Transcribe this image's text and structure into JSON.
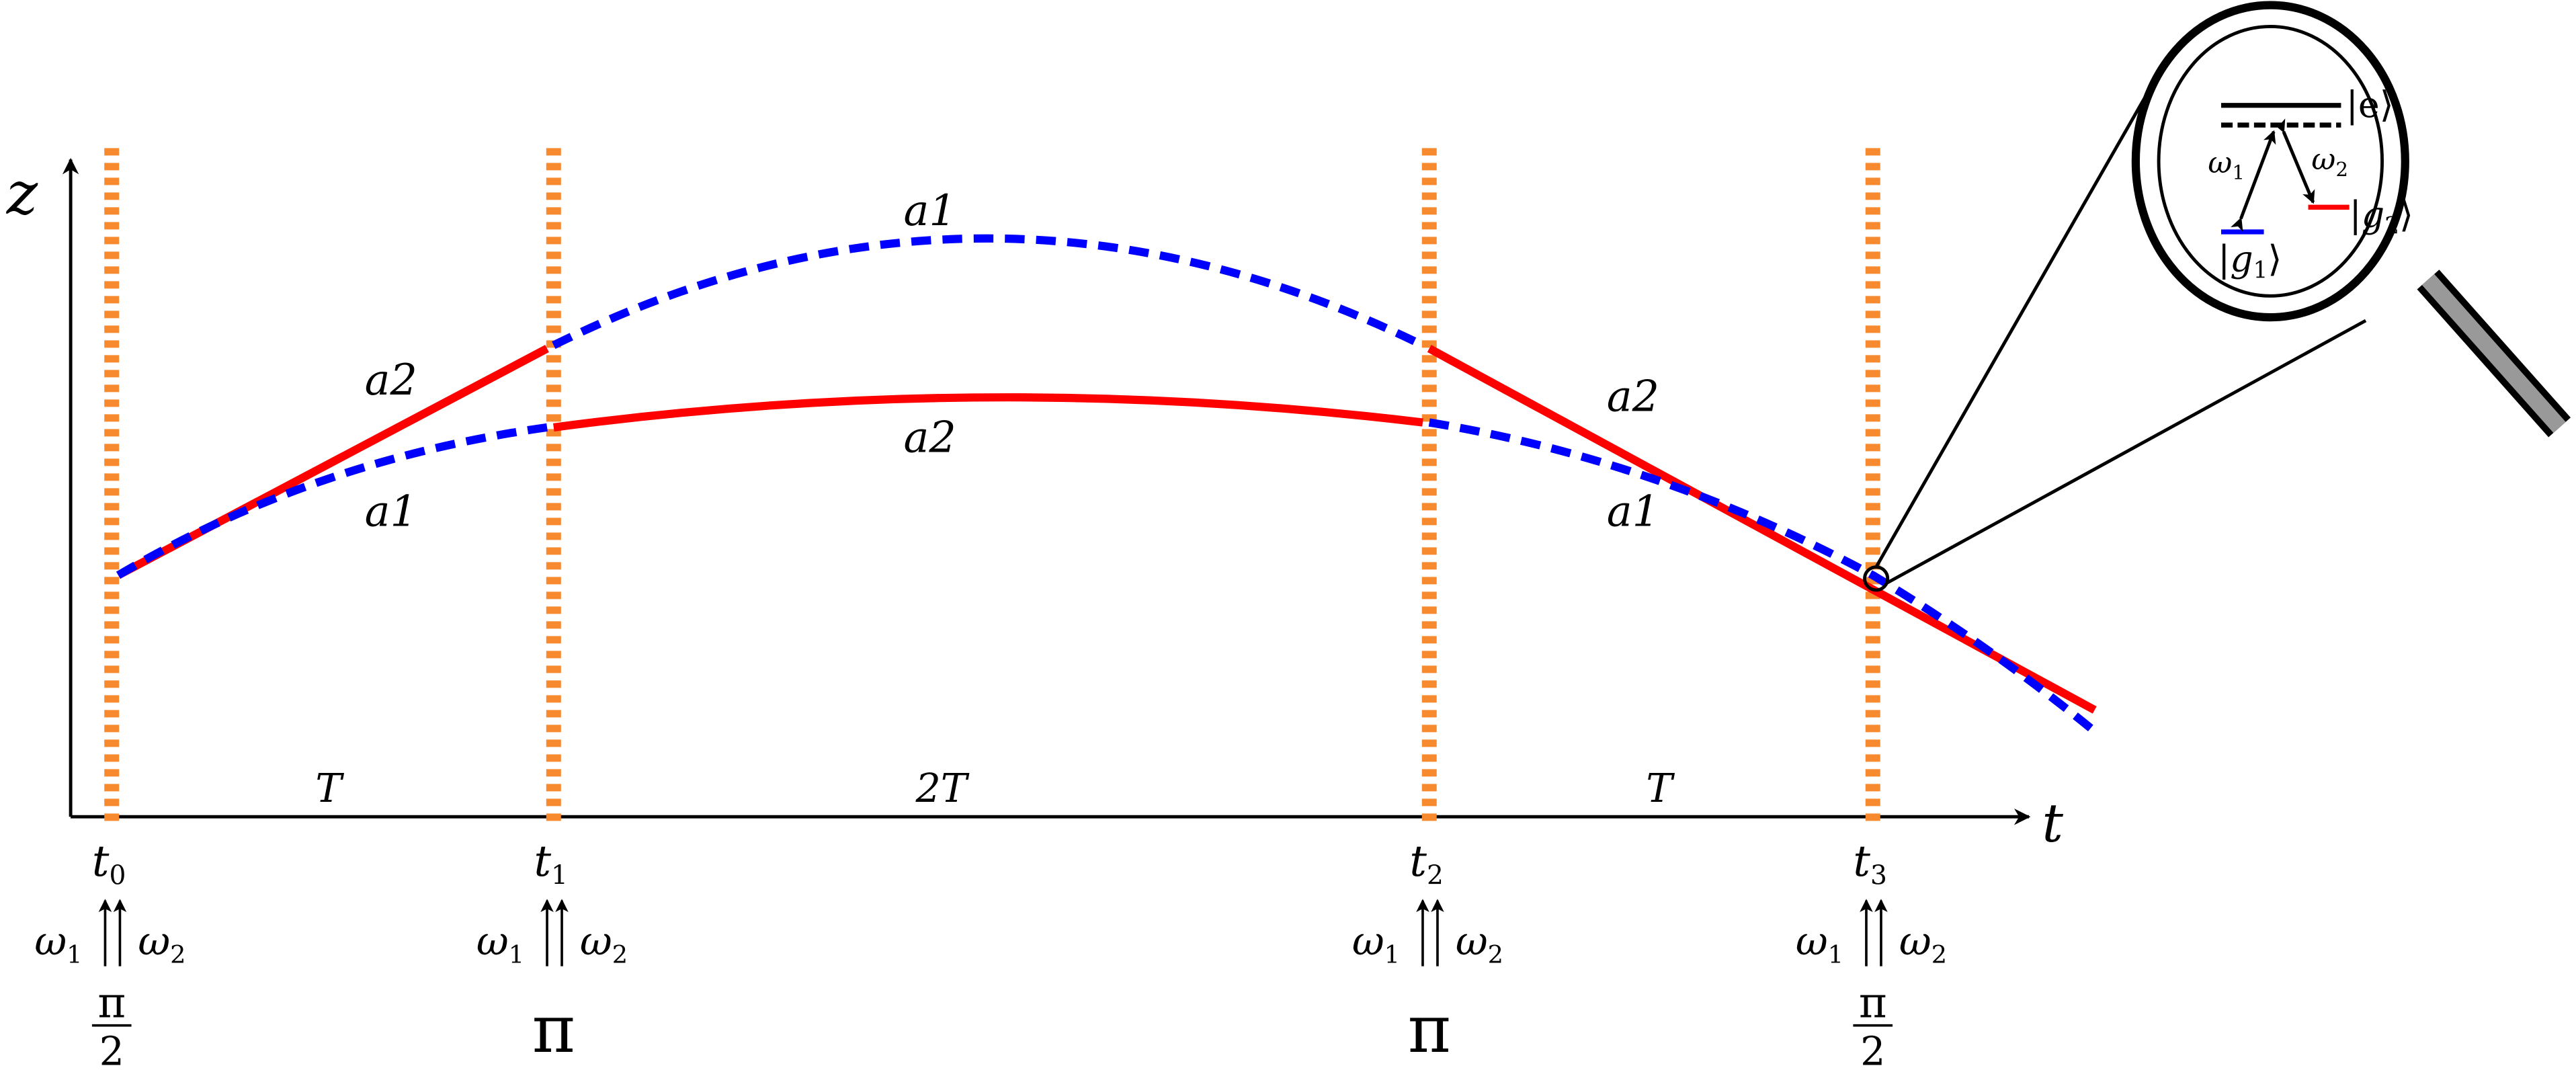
{
  "axes": {
    "z_label": "z",
    "t_label": "t"
  },
  "colors": {
    "pulse": "#f7892f",
    "red": "#ff0000",
    "blue": "#0000ff",
    "handle": "#999999"
  },
  "paths": {
    "upper_left": "a2",
    "lower_left": "a1",
    "upper_middle": "a1",
    "lower_middle": "a2",
    "upper_right": "a2",
    "lower_right": "a1"
  },
  "intervals": [
    "T",
    "2T",
    "T"
  ],
  "pulses": [
    {
      "time": "t",
      "sub": "0",
      "w1": "ω",
      "w1sub": "1",
      "w2": "ω",
      "w2sub": "2",
      "angle_num": "π",
      "angle_den": "2"
    },
    {
      "time": "t",
      "sub": "1",
      "w1": "ω",
      "w1sub": "1",
      "w2": "ω",
      "w2sub": "2",
      "angle": "π"
    },
    {
      "time": "t",
      "sub": "2",
      "w1": "ω",
      "w1sub": "1",
      "w2": "ω",
      "w2sub": "2",
      "angle": "π"
    },
    {
      "time": "t",
      "sub": "3",
      "w1": "ω",
      "w1sub": "1",
      "w2": "ω",
      "w2sub": "2",
      "angle_num": "π",
      "angle_den": "2"
    }
  ],
  "inset": {
    "excited": "|e⟩",
    "g1": "g",
    "g1sub": "1",
    "g2": "g",
    "g2sub": "2",
    "ket_open": "|",
    "ket_close": "⟩",
    "w1": "ω",
    "w1sub": "1",
    "w2": "ω",
    "w2sub": "2"
  }
}
